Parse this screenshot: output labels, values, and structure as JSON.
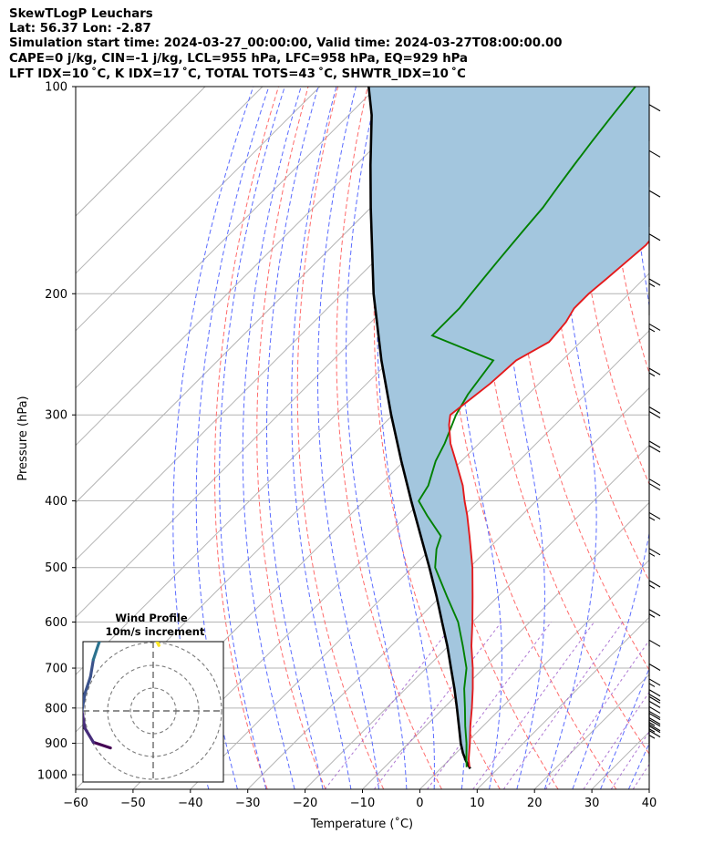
{
  "header": {
    "line1": "SkewTLogP Leuchars",
    "line2": "Lat: 56.37   Lon: -2.87",
    "line3": "Simulation start time: 2024-03-27_00:00:00, Valid time: 2024-03-27T08:00:00.00",
    "line4": "CAPE=0 j/kg, CIN=-1 j/kg, LCL=955 hPa, LFC=958 hPa, EQ=929 hPa",
    "line5": "LFT IDX=10 ˚C, K IDX=17 ˚C, TOTAL TOTS=43 ˚C, SHWTR_IDX=10 ˚C"
  },
  "chart_data": {
    "type": "line",
    "subtype": "skew-t log-p",
    "xlabel": "Temperature (˚C)",
    "ylabel": "Pressure (hPa)",
    "xlim": [
      -60,
      40
    ],
    "ylim": [
      1050,
      100
    ],
    "y_scale": "log",
    "grid": true,
    "x_ticks": [
      -60,
      -50,
      -40,
      -30,
      -20,
      -10,
      0,
      10,
      20,
      30,
      40
    ],
    "x_tick_labels": [
      "−60",
      "−50",
      "−40",
      "−30",
      "−20",
      "−10",
      "0",
      "10",
      "20",
      "30",
      "40"
    ],
    "y_ticks": [
      1000,
      900,
      800,
      700,
      600,
      500,
      400,
      300,
      200,
      100
    ],
    "y_tick_labels": [
      "1000",
      "900",
      "800",
      "700",
      "600",
      "500",
      "400",
      "300",
      "200",
      "100"
    ],
    "colors": {
      "temperature": "#e41a1c",
      "dewpoint": "#008000",
      "parcel": "#000000",
      "fill": "#a3c6de",
      "dry_adiabat": "#ff6b6b",
      "moist_adiabat": "#5a6bff",
      "mixing_ratio": "#9a55c8",
      "isotherm": "#b4b4b4",
      "isobar": "#b4b4b4"
    },
    "series": [
      {
        "key": "temperature",
        "p": [
          975,
          950,
          900,
          850,
          800,
          750,
          700,
          650,
          600,
          550,
          500,
          450,
          420,
          400,
          380,
          350,
          330,
          310,
          300,
          290,
          270,
          250,
          235,
          220,
          210,
          200,
          190,
          180,
          170,
          160,
          150,
          140,
          130,
          120,
          110,
          100
        ],
        "t": [
          4.8,
          3.3,
          0.7,
          -2.2,
          -5.1,
          -8.3,
          -11.9,
          -16.0,
          -20.0,
          -24.5,
          -29.5,
          -35.5,
          -39.5,
          -42.5,
          -45.5,
          -51.0,
          -55.0,
          -58.5,
          -60.0,
          -59.5,
          -58.5,
          -58.0,
          -55.5,
          -56.0,
          -57.0,
          -57.0,
          -56.5,
          -56.0,
          -55.5,
          -56.0,
          -56.5,
          -56.5,
          -56.5,
          -56.0,
          -55.0,
          -54.0
        ]
      },
      {
        "key": "dewpoint",
        "p": [
          975,
          950,
          900,
          850,
          800,
          750,
          700,
          650,
          600,
          550,
          500,
          470,
          450,
          420,
          400,
          380,
          350,
          330,
          300,
          280,
          250,
          230,
          210,
          200,
          190,
          180,
          170,
          160,
          150,
          140,
          130,
          120,
          110,
          100
        ],
        "t": [
          4.3,
          2.9,
          0.1,
          -3.1,
          -6.3,
          -9.8,
          -13.0,
          -17.5,
          -22.5,
          -29.0,
          -36.0,
          -39.0,
          -40.5,
          -46.5,
          -50.5,
          -51.5,
          -54.5,
          -56.0,
          -59.0,
          -60.5,
          -62.0,
          -77.0,
          -77.0,
          -77.5,
          -78.0,
          -78.5,
          -79.0,
          -79.5,
          -80.0,
          -81.0,
          -82.0,
          -83.0,
          -84.0,
          -85.0
        ]
      },
      {
        "key": "parcel",
        "p": [
          980,
          955,
          930,
          900,
          850,
          800,
          750,
          700,
          650,
          600,
          550,
          500,
          450,
          400,
          350,
          300,
          250,
          200,
          150,
          130,
          110,
          100
        ],
        "t": [
          5.2,
          3.1,
          1.2,
          -0.9,
          -4.2,
          -7.7,
          -11.5,
          -15.7,
          -20.2,
          -25.3,
          -30.8,
          -37.0,
          -44.0,
          -51.8,
          -60.5,
          -70.3,
          -81.5,
          -94.5,
          -110.0,
          -117.5,
          -126.0,
          -131.5
        ]
      }
    ],
    "wind_barbs": [
      {
        "p": 960,
        "speed_kt": 25
      },
      {
        "p": 940,
        "speed_kt": 25
      },
      {
        "p": 920,
        "speed_kt": 25
      },
      {
        "p": 900,
        "speed_kt": 20
      },
      {
        "p": 870,
        "speed_kt": 20
      },
      {
        "p": 850,
        "speed_kt": 20
      },
      {
        "p": 820,
        "speed_kt": 15
      },
      {
        "p": 780,
        "speed_kt": 10
      },
      {
        "p": 720,
        "speed_kt": 10
      },
      {
        "p": 650,
        "speed_kt": 15
      },
      {
        "p": 590,
        "speed_kt": 15
      },
      {
        "p": 530,
        "speed_kt": 15
      },
      {
        "p": 470,
        "speed_kt": 15
      },
      {
        "p": 420,
        "speed_kt": 20
      },
      {
        "p": 370,
        "speed_kt": 20
      },
      {
        "p": 330,
        "speed_kt": 20
      },
      {
        "p": 290,
        "speed_kt": 15
      },
      {
        "p": 250,
        "speed_kt": 15
      },
      {
        "p": 215,
        "speed_kt": 15
      },
      {
        "p": 185,
        "speed_kt": 10
      },
      {
        "p": 160,
        "speed_kt": 10
      },
      {
        "p": 140,
        "speed_kt": 10
      },
      {
        "p": 120,
        "speed_kt": 10
      }
    ],
    "wind_profile_inset": {
      "title": "Wind Profile",
      "subtitle": "10m/s increment",
      "ring_increment_ms": 10,
      "rings": 3,
      "hodograph": [
        {
          "u": -7.5,
          "v": -6.5,
          "level": 0.0
        },
        {
          "u": -10.5,
          "v": -5.5,
          "level": 0.05
        },
        {
          "u": -12.0,
          "v": -3.0,
          "level": 0.1
        },
        {
          "u": -12.5,
          "v": 0.0,
          "level": 0.15
        },
        {
          "u": -12.0,
          "v": 3.0,
          "level": 0.2
        },
        {
          "u": -11.0,
          "v": 6.0,
          "level": 0.25
        },
        {
          "u": -10.5,
          "v": 9.0,
          "level": 0.3
        },
        {
          "u": -9.5,
          "v": 12.0,
          "level": 0.35
        },
        {
          "u": -8.5,
          "v": 14.0,
          "level": 0.4
        },
        {
          "u": -8.0,
          "v": 17.0,
          "level": 0.45
        },
        {
          "u": -8.5,
          "v": 20.0,
          "level": 0.5
        },
        {
          "u": -7.0,
          "v": 21.5,
          "level": 0.55
        },
        {
          "u": -6.5,
          "v": 23.5,
          "level": 0.6
        },
        {
          "u": -5.0,
          "v": 24.5,
          "level": 0.65
        },
        {
          "u": -4.5,
          "v": 22.0,
          "level": 0.7
        },
        {
          "u": -3.5,
          "v": 18.0,
          "level": 0.75
        },
        {
          "u": -2.5,
          "v": 15.5,
          "level": 0.8
        },
        {
          "u": -1.0,
          "v": 14.0,
          "level": 0.85
        },
        {
          "u": 0.5,
          "v": 12.5,
          "level": 0.9
        },
        {
          "u": 1.0,
          "v": 11.5,
          "level": 0.95
        },
        {
          "u": 0.0,
          "v": 14.0,
          "level": 1.0
        }
      ]
    }
  }
}
